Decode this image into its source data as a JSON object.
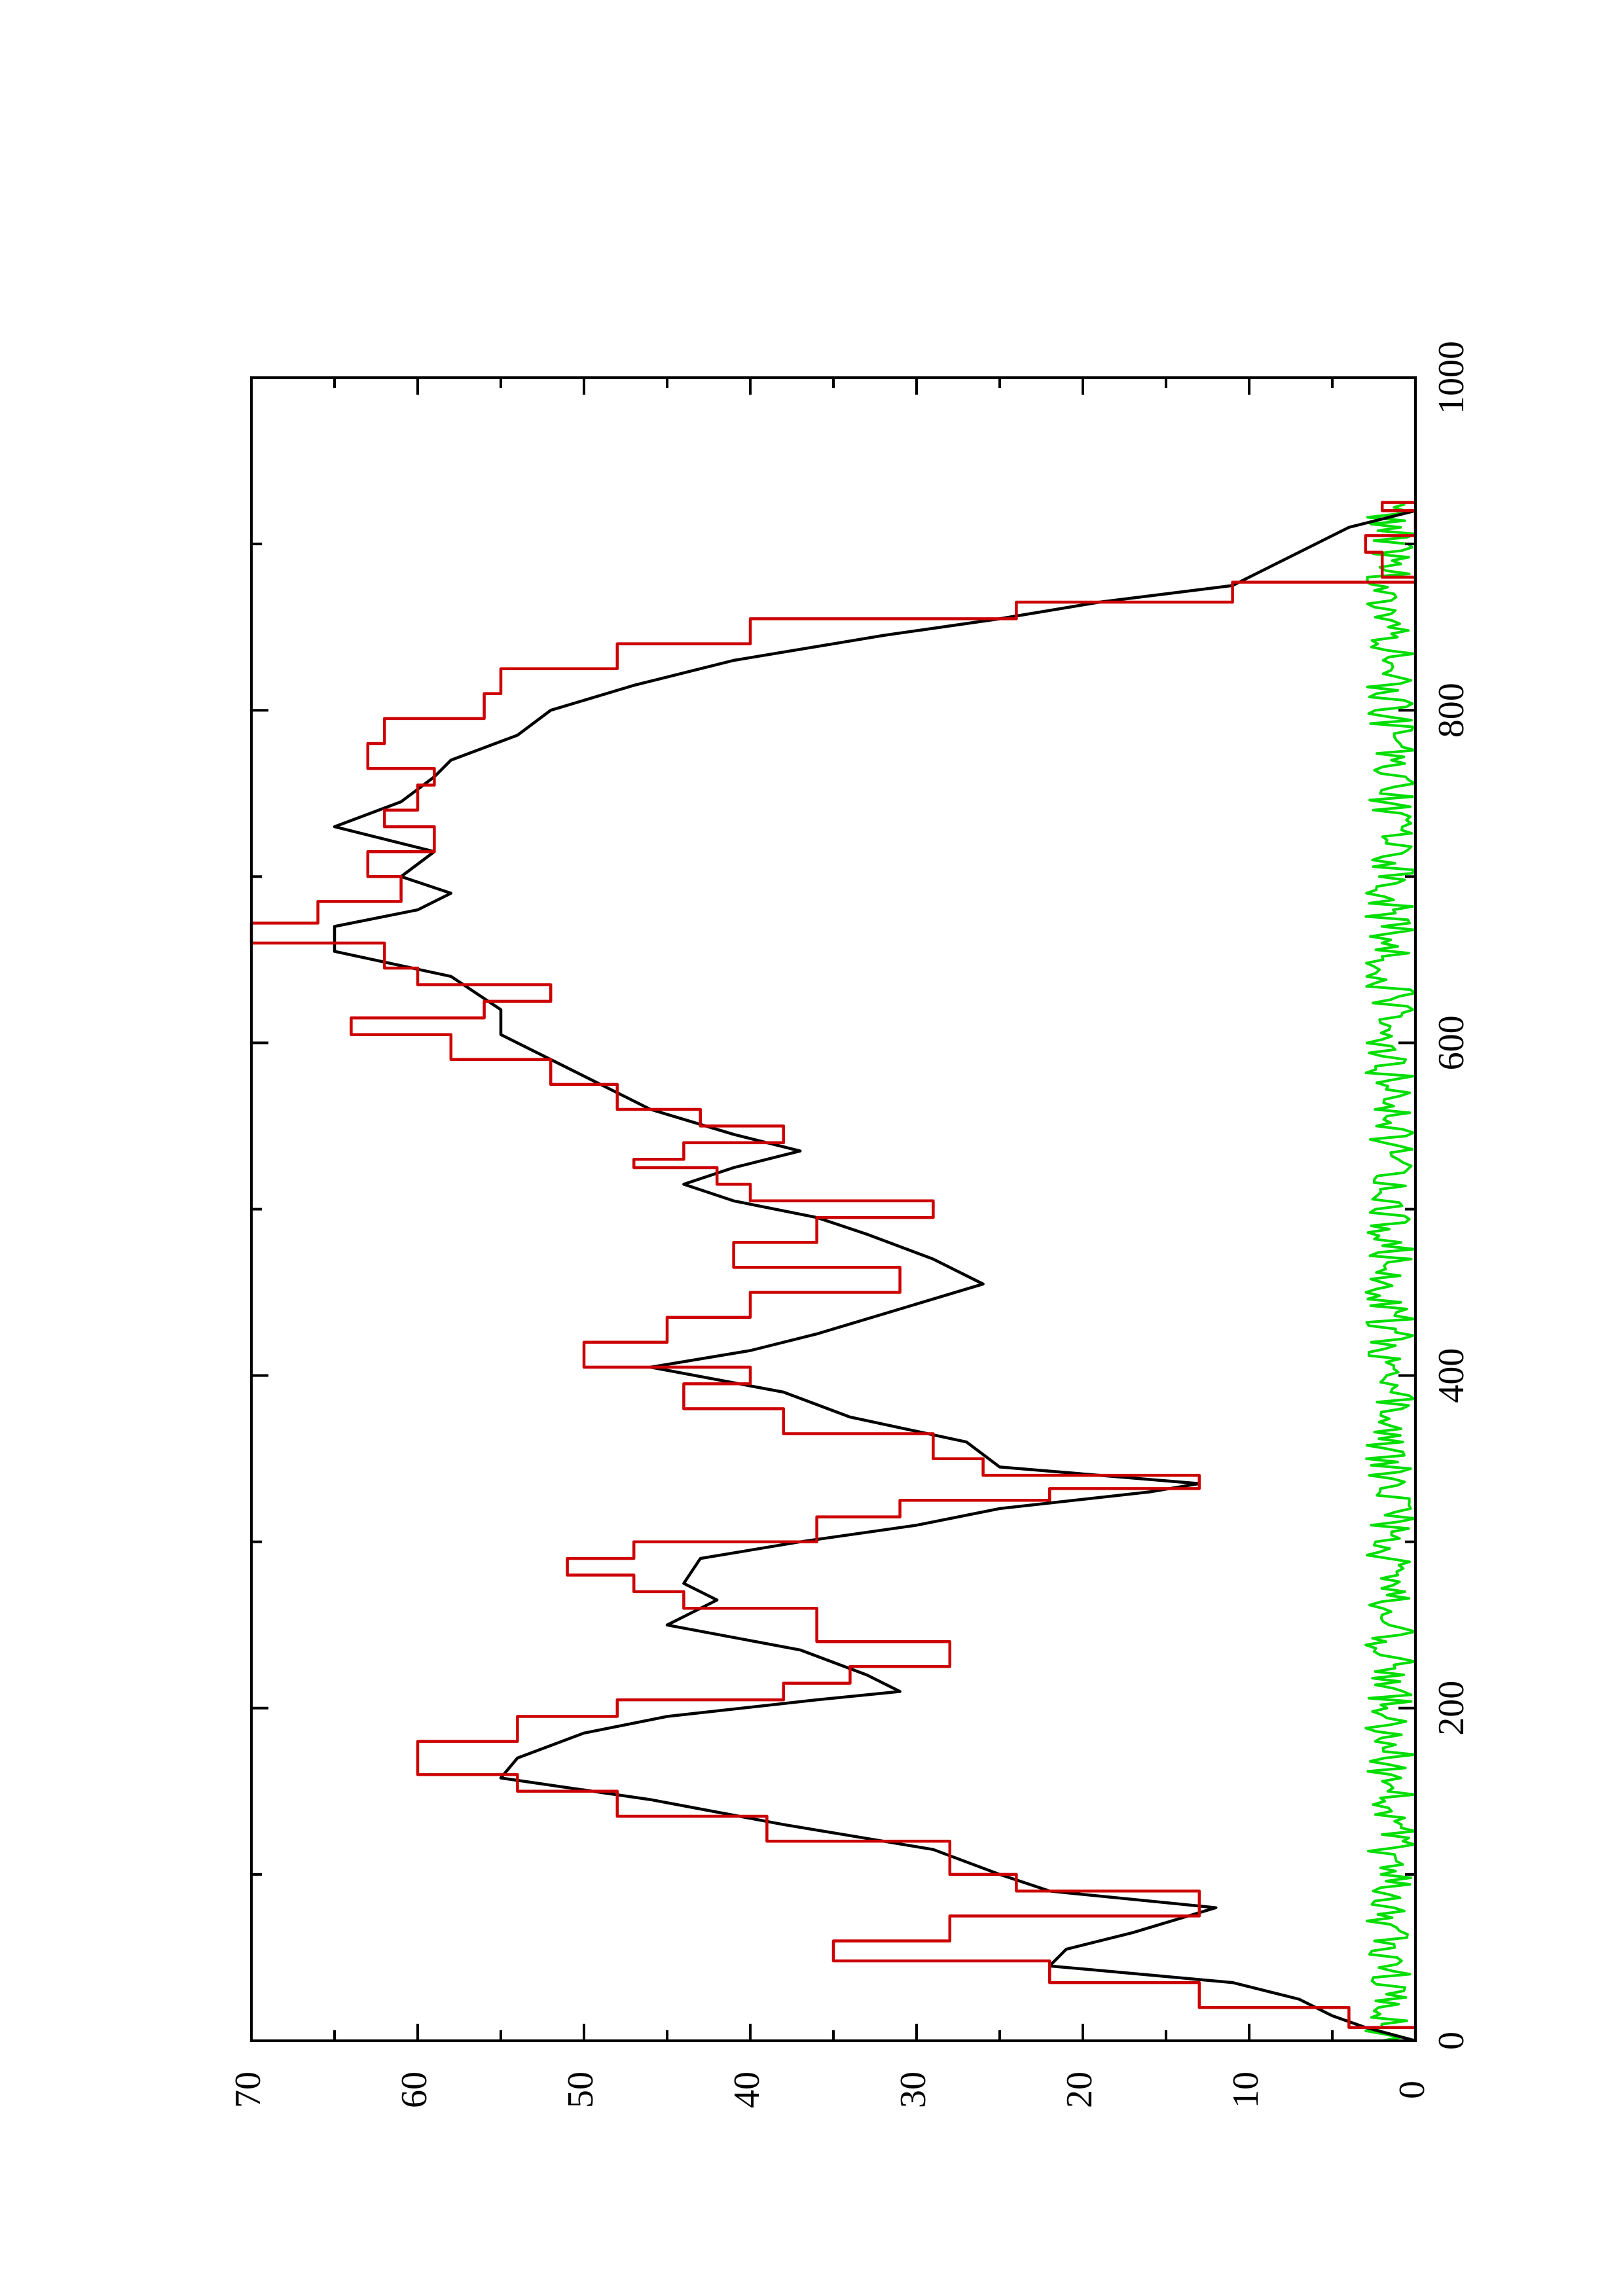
{
  "chart_data": {
    "type": "line",
    "title": "",
    "xlabel": "",
    "ylabel": "",
    "orientation": "rotated 90 degrees counter-clockwise",
    "xlim": [
      0,
      1000
    ],
    "ylim": [
      0,
      70
    ],
    "x_ticks": [
      "0",
      "200",
      "400",
      "600",
      "800",
      "1000"
    ],
    "y_ticks": [
      "0",
      "10",
      "20",
      "30",
      "40",
      "50",
      "60",
      "70"
    ],
    "grid": false,
    "legend": "none",
    "series": [
      {
        "color": "#cc0000",
        "style": "step",
        "points": [
          [
            0,
            0
          ],
          [
            8,
            4
          ],
          [
            20,
            13
          ],
          [
            35,
            22
          ],
          [
            48,
            35
          ],
          [
            60,
            28
          ],
          [
            75,
            13
          ],
          [
            90,
            24
          ],
          [
            100,
            28
          ],
          [
            120,
            39
          ],
          [
            135,
            48
          ],
          [
            150,
            54
          ],
          [
            160,
            60
          ],
          [
            180,
            54
          ],
          [
            195,
            48
          ],
          [
            205,
            38
          ],
          [
            215,
            34
          ],
          [
            225,
            28
          ],
          [
            240,
            36
          ],
          [
            260,
            44
          ],
          [
            270,
            47
          ],
          [
            280,
            51
          ],
          [
            290,
            47
          ],
          [
            300,
            36
          ],
          [
            315,
            31
          ],
          [
            325,
            22
          ],
          [
            332,
            13
          ],
          [
            340,
            26
          ],
          [
            350,
            29
          ],
          [
            365,
            38
          ],
          [
            380,
            44
          ],
          [
            395,
            40
          ],
          [
            405,
            50
          ],
          [
            420,
            45
          ],
          [
            435,
            40
          ],
          [
            450,
            31
          ],
          [
            465,
            41
          ],
          [
            480,
            36
          ],
          [
            495,
            29
          ],
          [
            505,
            40
          ],
          [
            515,
            42
          ],
          [
            525,
            47
          ],
          [
            530,
            44
          ],
          [
            540,
            38
          ],
          [
            550,
            43
          ],
          [
            560,
            48
          ],
          [
            575,
            52
          ],
          [
            590,
            58
          ],
          [
            605,
            64
          ],
          [
            615,
            56
          ],
          [
            625,
            52
          ],
          [
            635,
            60
          ],
          [
            645,
            62
          ],
          [
            660,
            70
          ],
          [
            672,
            66
          ],
          [
            685,
            61
          ],
          [
            700,
            63
          ],
          [
            715,
            59
          ],
          [
            730,
            62
          ],
          [
            740,
            60
          ],
          [
            755,
            59
          ],
          [
            765,
            63
          ],
          [
            780,
            62
          ],
          [
            795,
            56
          ],
          [
            810,
            55
          ],
          [
            825,
            48
          ],
          [
            840,
            40
          ],
          [
            855,
            24
          ],
          [
            865,
            11
          ],
          [
            877,
            0
          ],
          [
            880,
            2
          ],
          [
            895,
            3
          ],
          [
            905,
            0
          ],
          [
            920,
            2
          ],
          [
            925,
            0
          ]
        ]
      },
      {
        "color": "#000000",
        "style": "line",
        "points": [
          [
            0,
            0
          ],
          [
            8,
            3
          ],
          [
            15,
            5
          ],
          [
            25,
            7
          ],
          [
            35,
            11
          ],
          [
            45,
            22
          ],
          [
            55,
            21
          ],
          [
            65,
            17
          ],
          [
            80,
            12
          ],
          [
            90,
            22
          ],
          [
            100,
            25
          ],
          [
            115,
            29
          ],
          [
            130,
            38
          ],
          [
            145,
            46
          ],
          [
            158,
            55
          ],
          [
            170,
            54
          ],
          [
            185,
            50
          ],
          [
            195,
            45
          ],
          [
            205,
            36
          ],
          [
            210,
            31
          ],
          [
            220,
            33
          ],
          [
            235,
            37
          ],
          [
            250,
            45
          ],
          [
            265,
            42
          ],
          [
            275,
            44
          ],
          [
            290,
            43
          ],
          [
            300,
            37
          ],
          [
            310,
            30
          ],
          [
            320,
            25
          ],
          [
            330,
            16
          ],
          [
            335,
            13
          ],
          [
            345,
            25
          ],
          [
            360,
            27
          ],
          [
            375,
            34
          ],
          [
            390,
            38
          ],
          [
            405,
            46
          ],
          [
            415,
            40
          ],
          [
            425,
            36
          ],
          [
            440,
            31
          ],
          [
            455,
            26
          ],
          [
            470,
            29
          ],
          [
            485,
            33
          ],
          [
            495,
            36
          ],
          [
            505,
            41
          ],
          [
            515,
            44
          ],
          [
            525,
            41
          ],
          [
            535,
            37
          ],
          [
            545,
            41
          ],
          [
            560,
            46
          ],
          [
            575,
            49
          ],
          [
            590,
            52
          ],
          [
            605,
            55
          ],
          [
            620,
            55
          ],
          [
            640,
            58
          ],
          [
            655,
            65
          ],
          [
            670,
            65
          ],
          [
            680,
            60
          ],
          [
            690,
            58
          ],
          [
            700,
            61
          ],
          [
            715,
            59
          ],
          [
            730,
            65
          ],
          [
            745,
            61
          ],
          [
            760,
            59
          ],
          [
            770,
            58
          ],
          [
            785,
            54
          ],
          [
            800,
            52
          ],
          [
            815,
            47
          ],
          [
            830,
            41
          ],
          [
            845,
            32
          ],
          [
            855,
            25
          ],
          [
            865,
            19
          ],
          [
            875,
            11
          ],
          [
            890,
            8
          ],
          [
            900,
            6
          ],
          [
            910,
            4
          ],
          [
            920,
            0
          ]
        ]
      },
      {
        "color": "#00dd00",
        "style": "noisy",
        "baseline": 1.5,
        "amplitude": 1.5,
        "x_range": [
          0,
          925
        ]
      }
    ]
  }
}
